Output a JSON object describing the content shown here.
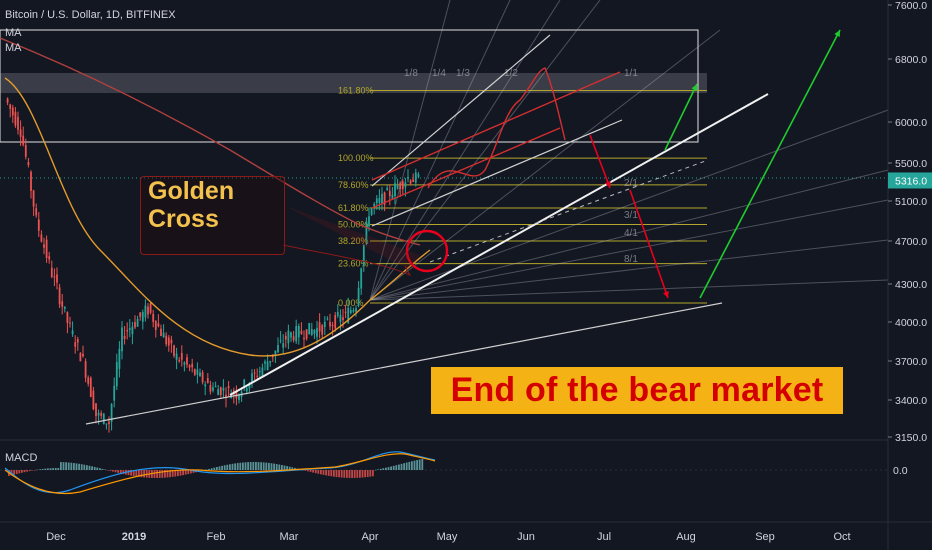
{
  "header": {
    "title": "Bitcoin / U.S. Dollar, 1D, BITFINEX",
    "indicators": [
      "MA",
      "MA"
    ],
    "macd_label": "MACD"
  },
  "annotations": {
    "golden_cross": [
      "Golden",
      "Cross"
    ],
    "banner": "End of the bear market"
  },
  "price_tag": "5316.0",
  "colors": {
    "background": "#131722",
    "candle_up": "#26a69a",
    "candle_down": "#ef5350",
    "fib_line": "#b3a62a",
    "arrow_red": "#e8001c",
    "arrow_green": "#1fcc2e",
    "ma_short": "#e39b2b",
    "ma_long": "#b0413e",
    "banner_bg": "#f5b214",
    "banner_text": "#d40000",
    "golden_text": "#f2c14e"
  },
  "chart_data": {
    "type": "candlestick",
    "title": "Bitcoin / U.S. Dollar, 1D, BITFINEX",
    "y_ticks": [
      3150,
      3400,
      3700,
      4000,
      4300,
      4700,
      5100,
      5500,
      6000,
      6800,
      7600
    ],
    "x_ticks": [
      "Dec",
      "2019",
      "Feb",
      "Mar",
      "Apr",
      "May",
      "Jun",
      "Jul",
      "Aug",
      "Sep",
      "Oct"
    ],
    "last_price": 5316.0,
    "fib_levels": [
      {
        "label": "0.00%",
        "price": 4150
      },
      {
        "label": "23.60%",
        "price": 4490
      },
      {
        "label": "38.20%",
        "price": 4700
      },
      {
        "label": "50.00%",
        "price": 4865
      },
      {
        "label": "61.80%",
        "price": 5030
      },
      {
        "label": "78.60%",
        "price": 5270
      },
      {
        "label": "100.00%",
        "price": 5560
      },
      {
        "label": "161.80%",
        "price": 6400
      }
    ],
    "fan_labels": [
      "1/8",
      "1/4",
      "1/3",
      "1/2",
      "1/1",
      "2/1",
      "3/1",
      "4/1",
      "8/1"
    ],
    "macd": {
      "zero_label": "0.0"
    }
  }
}
